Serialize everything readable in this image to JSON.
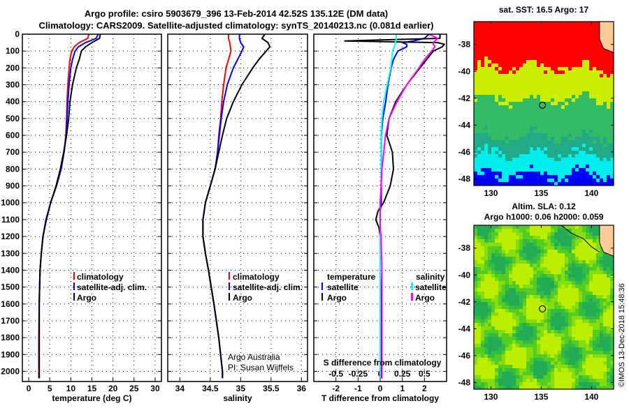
{
  "title_line1": "Argo profile: csiro 5903679_396 13-Feb-2014 42.52S 135.12E (DM data)",
  "title_line2": "Climatology: CARS2009. Satellite-adjusted climatology: synTS_20140213.nc (0.081d earlier)",
  "colors": {
    "climatology": "#ff0000",
    "satellite": "#0000ff",
    "argo": "#000000",
    "sal_satellite": "#00ffff",
    "sal_argo": "#ff00ff"
  },
  "credit": {
    "line1": "Argo Australia",
    "line2": "PI: Susan Wijffels"
  },
  "watermark": "©IMOS 13-Dec-2018 15:48:36",
  "chart_data": [
    {
      "type": "line",
      "id": "temperature",
      "xlabel": "temperature (deg C)",
      "ylabel": "depth",
      "xlim": [
        -1.5,
        31.5
      ],
      "ylim": [
        2060,
        0
      ],
      "xticks": [
        0,
        5,
        10,
        15,
        20,
        25,
        30
      ],
      "yticks": [
        0,
        100,
        200,
        300,
        400,
        500,
        600,
        700,
        800,
        900,
        1000,
        1100,
        1200,
        1300,
        1400,
        1500,
        1600,
        1700,
        1800,
        1900,
        2000
      ],
      "depth": [
        0,
        25,
        50,
        75,
        100,
        150,
        200,
        300,
        400,
        500,
        600,
        700,
        800,
        900,
        1000,
        1100,
        1200,
        1300,
        1400,
        1600,
        1800,
        2000,
        2040
      ],
      "series": [
        {
          "name": "climatology",
          "color": "#ff0000",
          "values": [
            14.3,
            14,
            12,
            10.8,
            10.2,
            9.8,
            9.6,
            9.3,
            9.1,
            9,
            8.8,
            8.4,
            7.7,
            6.6,
            5.2,
            4.2,
            3.4,
            3,
            2.7,
            2.5,
            2.4,
            2.4,
            2.4
          ]
        },
        {
          "name": "satellite-adj. clim.",
          "color": "#0000ff",
          "values": [
            16.5,
            16,
            13.5,
            11.8,
            11,
            10.4,
            10,
            9.6,
            9.3,
            9.1,
            8.9,
            8.4,
            7.7,
            6.6,
            5.2,
            4.2,
            3.4,
            3,
            2.7,
            2.5,
            2.5,
            2.5,
            2.5
          ]
        },
        {
          "name": "Argo",
          "color": "#000000",
          "values": [
            17,
            16.8,
            15,
            13.5,
            12.5,
            12,
            11.3,
            10.4,
            9.8,
            9.5,
            9,
            8.3,
            7.5,
            6.5,
            5.2,
            4.1,
            3.4,
            3,
            2.7,
            2.5,
            2.5,
            2.5,
            2.5
          ]
        }
      ]
    },
    {
      "type": "line",
      "id": "salinity",
      "xlabel": "salinity",
      "ylabel": "depth",
      "xlim": [
        33.8,
        36.1
      ],
      "ylim": [
        2060,
        0
      ],
      "xticks": [
        34,
        34.5,
        35,
        35.5,
        36
      ],
      "depth": [
        0,
        25,
        50,
        75,
        100,
        150,
        200,
        300,
        400,
        500,
        600,
        700,
        800,
        900,
        1000,
        1100,
        1200,
        1300,
        1400,
        1600,
        1800,
        2000,
        2040
      ],
      "series": [
        {
          "name": "climatology",
          "color": "#ff0000",
          "values": [
            34.8,
            34.8,
            34.82,
            34.83,
            34.84,
            34.8,
            34.76,
            34.72,
            34.69,
            34.67,
            34.64,
            34.62,
            34.58,
            34.5,
            34.42,
            34.38,
            34.38,
            34.42,
            34.47,
            34.56,
            34.64,
            34.7,
            34.7
          ]
        },
        {
          "name": "satellite-adj. clim.",
          "color": "#0000ff",
          "values": [
            34.98,
            34.98,
            35,
            35.05,
            35.02,
            34.95,
            34.88,
            34.78,
            34.72,
            34.68,
            34.65,
            34.62,
            34.58,
            34.5,
            34.42,
            34.38,
            34.38,
            34.42,
            34.47,
            34.56,
            34.64,
            34.7,
            34.7
          ]
        },
        {
          "name": "Argo",
          "color": "#000000",
          "values": [
            35.4,
            35.35,
            35.45,
            35.48,
            35.42,
            35.3,
            35.2,
            35.02,
            34.88,
            34.77,
            34.7,
            34.64,
            34.58,
            34.5,
            34.42,
            34.38,
            34.38,
            34.42,
            34.47,
            34.56,
            34.64,
            34.7,
            34.7
          ]
        }
      ]
    },
    {
      "type": "line",
      "id": "difference",
      "xlabel": "T difference from climatology",
      "x2label": "S difference from climatology",
      "xlim": [
        -3,
        3
      ],
      "x2lim": [
        -0.75,
        0.75
      ],
      "ylim": [
        2060,
        0
      ],
      "xticks": [
        -2,
        -1,
        0,
        1,
        2
      ],
      "x2ticks": [
        -0.5,
        -0.25,
        0,
        0.25,
        0.5
      ],
      "x2ticklabels": [
        "-0.5",
        "-0.25",
        "0",
        "0.25",
        "0.5"
      ],
      "legend_headers": {
        "temperature": "temperature",
        "salinity": "salinity"
      },
      "depth": [
        0,
        25,
        40,
        50,
        60,
        75,
        100,
        150,
        200,
        300,
        400,
        500,
        600,
        700,
        800,
        900,
        1000,
        1050,
        1100,
        1150,
        1200,
        1400,
        1600,
        1800,
        2000,
        2040
      ],
      "series": [
        {
          "name": "satellite",
          "group": "temperature",
          "color": "#0000ff",
          "values": [
            2.2,
            2,
            1.5,
            1,
            1.2,
            1.2,
            0.8,
            0.6,
            0.5,
            0.35,
            0.25,
            0.12,
            0.05,
            0.05,
            0.05,
            0.05,
            0.05,
            0,
            0,
            0,
            0,
            0,
            0.02,
            0.03,
            0.03,
            0.03
          ]
        },
        {
          "name": "Argo",
          "group": "temperature",
          "color": "#000000",
          "values": [
            2.7,
            2.7,
            -1.6,
            2.6,
            2.9,
            2.8,
            2.4,
            2.1,
            1.8,
            1.2,
            0.7,
            0.4,
            0.3,
            0.55,
            0.6,
            0.45,
            0.15,
            -0.1,
            -0.2,
            -0.05,
            0,
            0,
            0.03,
            0.03,
            0.05,
            0.05
          ]
        },
        {
          "name": "satellite",
          "group": "salinity",
          "color": "#00ffff",
          "values": [
            0.18,
            0.18,
            0.18,
            0.17,
            0.17,
            0.16,
            0.14,
            0.13,
            0.12,
            0.08,
            0.04,
            0.02,
            0.01,
            0.01,
            0.01,
            0.01,
            0,
            0,
            0,
            0,
            0,
            0,
            0,
            0,
            0,
            0
          ]
        },
        {
          "name": "Argo",
          "group": "salinity",
          "color": "#ff00ff",
          "values": [
            0.55,
            0.65,
            0.62,
            0.6,
            0.6,
            0.62,
            0.58,
            0.5,
            0.44,
            0.3,
            0.19,
            0.1,
            0.06,
            0.04,
            0.02,
            0.01,
            0,
            0,
            0,
            0,
            0.01,
            0.02,
            0.02,
            0.02,
            0.02,
            0.02
          ]
        }
      ]
    },
    {
      "type": "heatmap",
      "id": "sst-map",
      "title": "sat. SST: 16.5 Argo: 17",
      "xlim": [
        128.3,
        142.2
      ],
      "ylim": [
        -48.5,
        -36.3
      ],
      "xticks": [
        130,
        135,
        140
      ],
      "yticks": [
        -38,
        -40,
        -42,
        -44,
        -46,
        -48
      ],
      "argo_position": [
        135.12,
        -42.52
      ],
      "bands": [
        {
          "to_lat": -39.6,
          "color": "#ff0000"
        },
        {
          "to_lat": -42,
          "color": "#ccee00"
        },
        {
          "to_lat": -44.8,
          "color": "#33bb66"
        },
        {
          "to_lat": -46,
          "color": "#22aa88"
        },
        {
          "to_lat": -47.6,
          "color": "#00eeee"
        },
        {
          "to_lat": -49,
          "color": "#0000ff"
        }
      ],
      "land_color": "#ffcc99"
    },
    {
      "type": "heatmap",
      "id": "sla-map",
      "title": "Altim. SLA: 0.12",
      "subtitle": "Argo h1000: 0.06 h2000: 0.059",
      "xlim": [
        128.3,
        142.2
      ],
      "ylim": [
        -48.5,
        -36.3
      ],
      "xticks": [
        130,
        135,
        140
      ],
      "yticks": [
        -38,
        -40,
        -42,
        -44,
        -46,
        -48
      ],
      "argo_position": [
        135.12,
        -42.52
      ],
      "palette": [
        "#22aa55",
        "#33bb44",
        "#55cc22",
        "#88dd11",
        "#bbee00"
      ],
      "land_color": "#ffcc99"
    }
  ]
}
